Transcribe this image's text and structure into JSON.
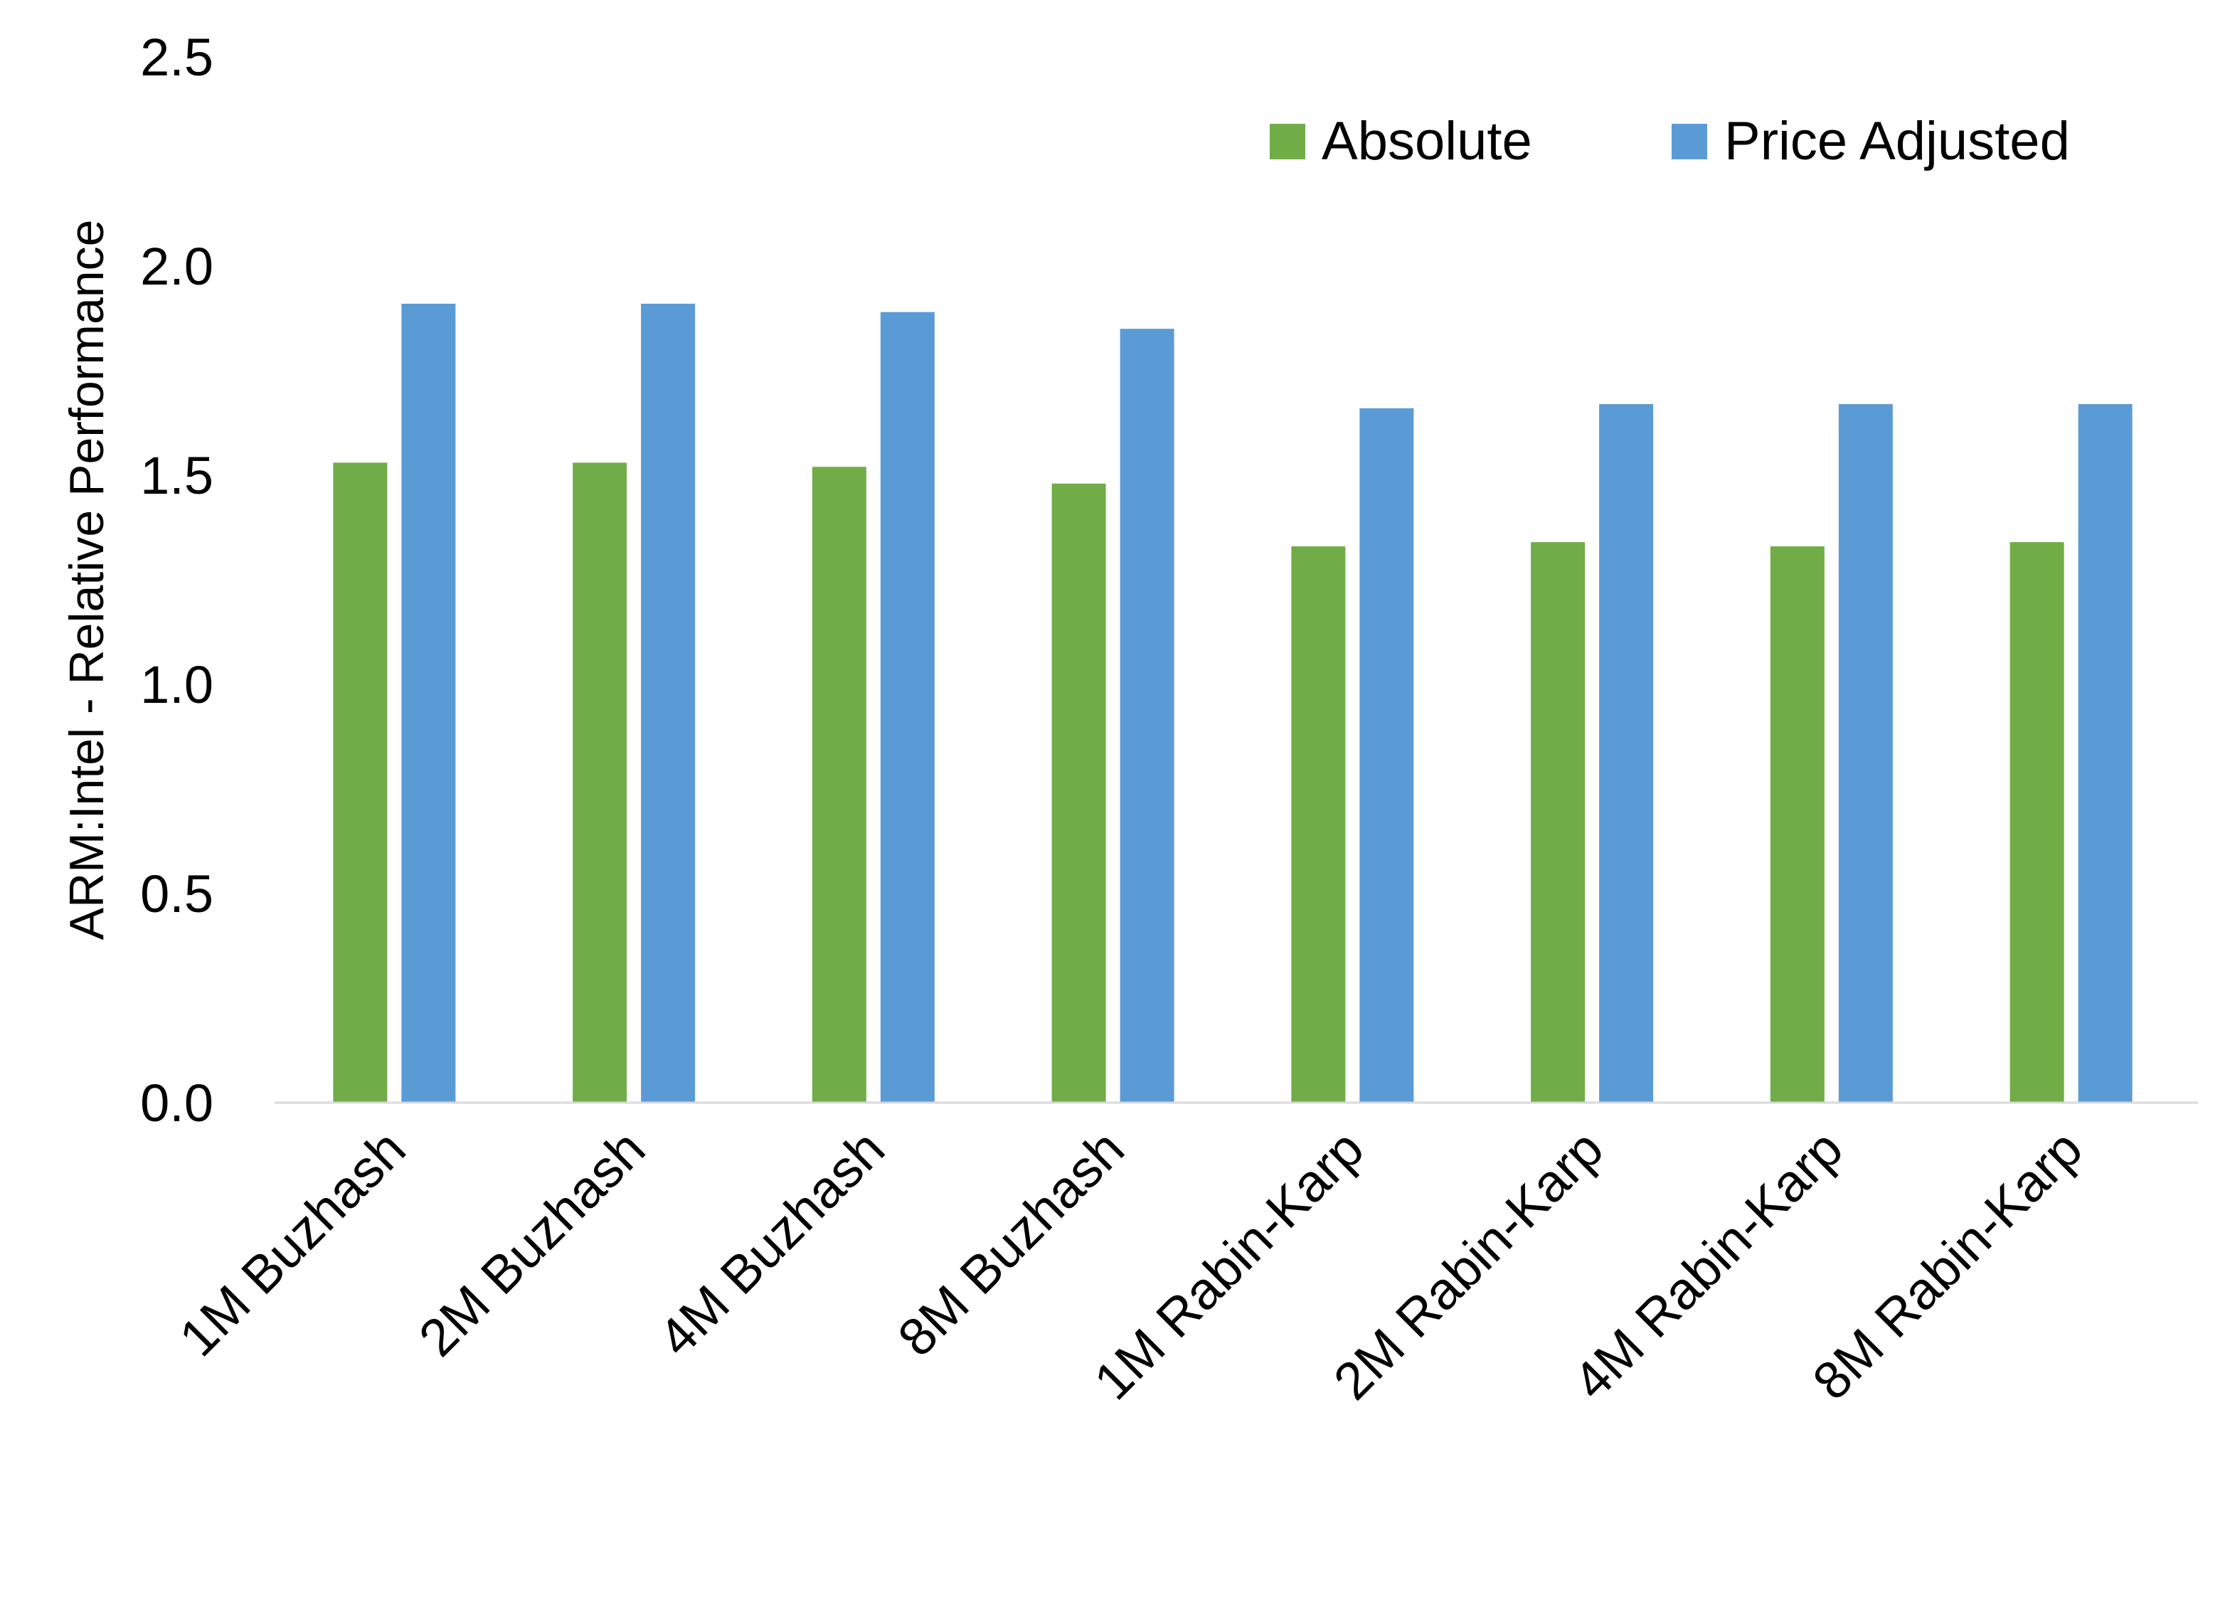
{
  "chart_data": {
    "type": "bar",
    "title": "",
    "xlabel": "",
    "ylabel": "ARM:Intel - Relative Performance",
    "ylim": [
      0,
      2.5
    ],
    "yticks": [
      "0.0",
      "0.5",
      "1.0",
      "1.5",
      "2.0",
      "2.5"
    ],
    "grid": false,
    "legend_position": "top-right",
    "categories": [
      "1M Buzhash",
      "2M Buzhash",
      "4M Buzhash",
      "8M Buzhash",
      "1M Rabin-Karp",
      "2M Rabin-Karp",
      "4M Rabin-Karp",
      "8M Rabin-Karp"
    ],
    "series": [
      {
        "name": "Absolute",
        "color": "#70AD47",
        "values": [
          1.53,
          1.53,
          1.52,
          1.48,
          1.33,
          1.34,
          1.33,
          1.34
        ]
      },
      {
        "name": "Price Adjusted",
        "color": "#5B9BD5",
        "values": [
          1.91,
          1.91,
          1.89,
          1.85,
          1.66,
          1.67,
          1.67,
          1.67
        ]
      }
    ]
  }
}
